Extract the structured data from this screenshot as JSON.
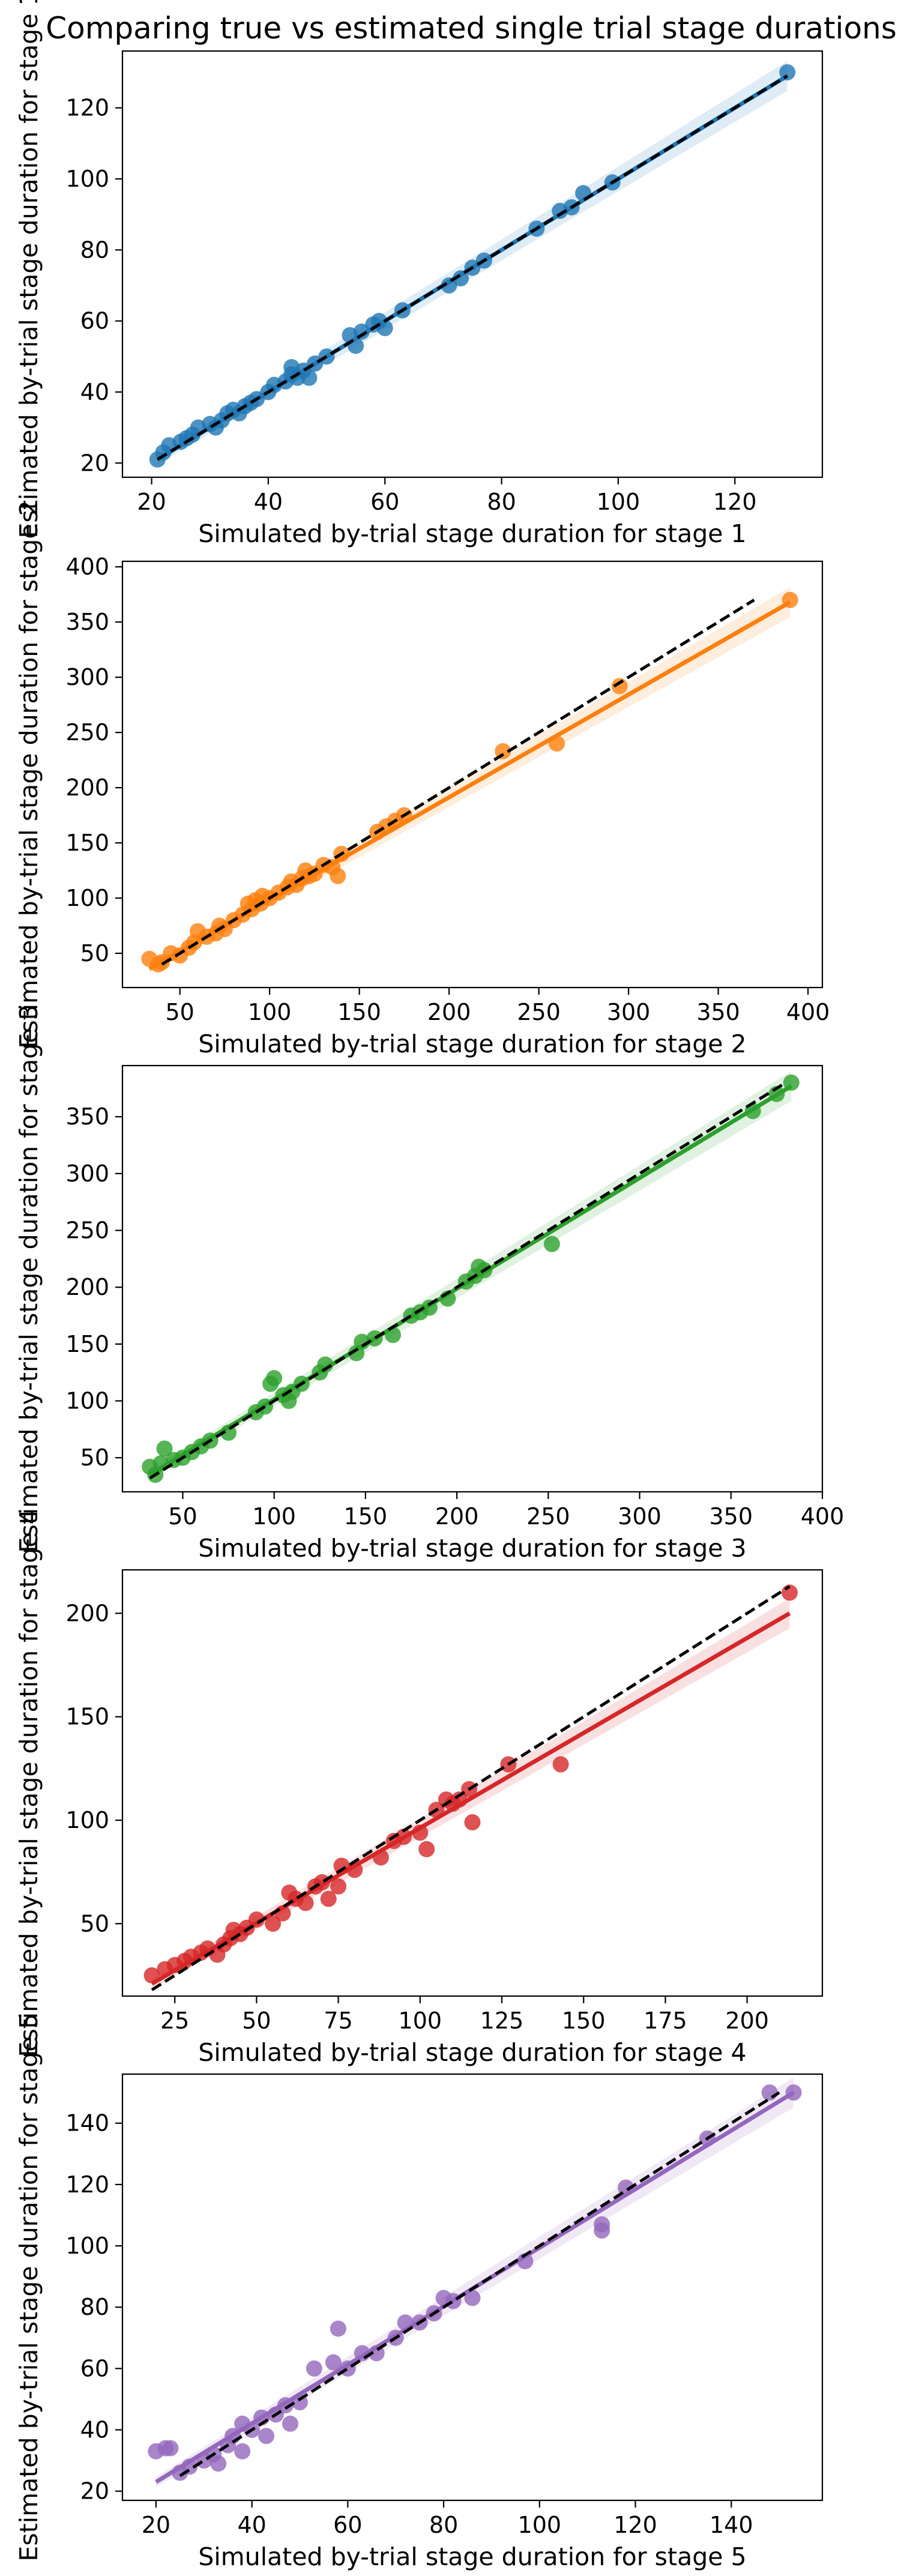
{
  "figure_title": "Comparing true vs estimated single trial stage durations",
  "identity_line": {
    "color": "#000000",
    "style": "dashed"
  },
  "chart_data": [
    {
      "type": "scatter",
      "stage": 1,
      "color": "#1f77b4",
      "xlabel": "Simulated by-trial stage duration for stage 1",
      "ylabel": "Estimated by-trial stage duration for stage 1",
      "xlim": [
        15,
        135
      ],
      "ylim": [
        16,
        136
      ],
      "xticks": [
        20,
        40,
        60,
        80,
        100,
        120
      ],
      "yticks": [
        20,
        40,
        60,
        80,
        100,
        120
      ],
      "identity": [
        21,
        129
      ],
      "fit": {
        "x": [
          21,
          129
        ],
        "y": [
          21,
          129
        ]
      },
      "points": [
        [
          21,
          21
        ],
        [
          22,
          23
        ],
        [
          23,
          25
        ],
        [
          25,
          26
        ],
        [
          26,
          27
        ],
        [
          27,
          28
        ],
        [
          28,
          30
        ],
        [
          30,
          31
        ],
        [
          31,
          30
        ],
        [
          32,
          32
        ],
        [
          33,
          34
        ],
        [
          34,
          35
        ],
        [
          35,
          34
        ],
        [
          36,
          36
        ],
        [
          37,
          37
        ],
        [
          38,
          38
        ],
        [
          40,
          40
        ],
        [
          41,
          42
        ],
        [
          43,
          43
        ],
        [
          44,
          45
        ],
        [
          44,
          47
        ],
        [
          45,
          44
        ],
        [
          46,
          46
        ],
        [
          47,
          44
        ],
        [
          48,
          48
        ],
        [
          50,
          50
        ],
        [
          54,
          56
        ],
        [
          55,
          53
        ],
        [
          56,
          57
        ],
        [
          58,
          59
        ],
        [
          59,
          60
        ],
        [
          60,
          58
        ],
        [
          63,
          63
        ],
        [
          71,
          70
        ],
        [
          73,
          72
        ],
        [
          75,
          75
        ],
        [
          77,
          77
        ],
        [
          86,
          86
        ],
        [
          90,
          91
        ],
        [
          92,
          92
        ],
        [
          94,
          96
        ],
        [
          99,
          99
        ],
        [
          129,
          130
        ]
      ]
    },
    {
      "type": "scatter",
      "stage": 2,
      "color": "#ff7f0e",
      "xlabel": "Simulated by-trial stage duration for stage 2",
      "ylabel": "Estimated by-trial stage duration for stage 2",
      "xlim": [
        18,
        408
      ],
      "ylim": [
        19,
        405
      ],
      "xticks": [
        50,
        100,
        150,
        200,
        250,
        300,
        350,
        400
      ],
      "yticks": [
        50,
        100,
        150,
        200,
        250,
        300,
        350,
        400
      ],
      "identity": [
        40,
        370
      ],
      "fit": {
        "x": [
          33,
          390
        ],
        "y": [
          36,
          368
        ]
      },
      "points": [
        [
          33,
          45
        ],
        [
          38,
          40
        ],
        [
          40,
          42
        ],
        [
          45,
          50
        ],
        [
          50,
          48
        ],
        [
          55,
          55
        ],
        [
          58,
          60
        ],
        [
          60,
          70
        ],
        [
          65,
          65
        ],
        [
          70,
          68
        ],
        [
          72,
          75
        ],
        [
          75,
          72
        ],
        [
          80,
          80
        ],
        [
          85,
          85
        ],
        [
          88,
          95
        ],
        [
          90,
          90
        ],
        [
          92,
          98
        ],
        [
          95,
          95
        ],
        [
          96,
          102
        ],
        [
          100,
          100
        ],
        [
          105,
          105
        ],
        [
          110,
          110
        ],
        [
          112,
          115
        ],
        [
          115,
          112
        ],
        [
          118,
          118
        ],
        [
          120,
          125
        ],
        [
          122,
          120
        ],
        [
          125,
          122
        ],
        [
          130,
          130
        ],
        [
          135,
          128
        ],
        [
          138,
          120
        ],
        [
          140,
          140
        ],
        [
          160,
          160
        ],
        [
          165,
          165
        ],
        [
          170,
          170
        ],
        [
          175,
          175
        ],
        [
          230,
          233
        ],
        [
          260,
          240
        ],
        [
          295,
          292
        ],
        [
          390,
          370
        ]
      ]
    },
    {
      "type": "scatter",
      "stage": 3,
      "color": "#2ca02c",
      "xlabel": "Simulated by-trial stage duration for stage 3",
      "ylabel": "Estimated by-trial stage duration for stage 3",
      "xlim": [
        17,
        400
      ],
      "ylim": [
        20,
        395
      ],
      "xticks": [
        50,
        100,
        150,
        200,
        250,
        300,
        350,
        400
      ],
      "yticks": [
        50,
        100,
        150,
        200,
        250,
        300,
        350
      ],
      "identity": [
        32,
        380
      ],
      "fit": {
        "x": [
          32,
          383
        ],
        "y": [
          35,
          377
        ]
      },
      "points": [
        [
          32,
          42
        ],
        [
          35,
          35
        ],
        [
          38,
          45
        ],
        [
          40,
          58
        ],
        [
          45,
          48
        ],
        [
          50,
          50
        ],
        [
          55,
          55
        ],
        [
          60,
          60
        ],
        [
          65,
          65
        ],
        [
          75,
          72
        ],
        [
          90,
          90
        ],
        [
          95,
          95
        ],
        [
          98,
          115
        ],
        [
          100,
          120
        ],
        [
          105,
          105
        ],
        [
          108,
          100
        ],
        [
          110,
          108
        ],
        [
          115,
          115
        ],
        [
          125,
          125
        ],
        [
          128,
          132
        ],
        [
          145,
          142
        ],
        [
          148,
          152
        ],
        [
          155,
          155
        ],
        [
          165,
          158
        ],
        [
          175,
          175
        ],
        [
          180,
          178
        ],
        [
          185,
          182
        ],
        [
          195,
          190
        ],
        [
          205,
          205
        ],
        [
          210,
          210
        ],
        [
          212,
          218
        ],
        [
          215,
          215
        ],
        [
          252,
          238
        ],
        [
          362,
          355
        ],
        [
          375,
          370
        ],
        [
          383,
          380
        ]
      ]
    },
    {
      "type": "scatter",
      "stage": 4,
      "color": "#d62728",
      "xlabel": "Simulated by-trial stage duration for stage 4",
      "ylabel": "Estimated by-trial stage duration for stage 4",
      "xlim": [
        9,
        223
      ],
      "ylim": [
        15,
        221
      ],
      "xticks": [
        25,
        50,
        75,
        100,
        125,
        150,
        175,
        200
      ],
      "yticks": [
        50,
        100,
        150,
        200
      ],
      "identity": [
        18,
        213
      ],
      "fit": {
        "x": [
          18,
          213
        ],
        "y": [
          21,
          200
        ]
      },
      "points": [
        [
          18,
          25
        ],
        [
          22,
          28
        ],
        [
          25,
          30
        ],
        [
          28,
          32
        ],
        [
          30,
          34
        ],
        [
          33,
          36
        ],
        [
          35,
          38
        ],
        [
          38,
          35
        ],
        [
          40,
          40
        ],
        [
          42,
          43
        ],
        [
          43,
          47
        ],
        [
          45,
          45
        ],
        [
          47,
          48
        ],
        [
          50,
          52
        ],
        [
          55,
          50
        ],
        [
          58,
          55
        ],
        [
          60,
          65
        ],
        [
          62,
          62
        ],
        [
          65,
          60
        ],
        [
          68,
          68
        ],
        [
          70,
          70
        ],
        [
          72,
          62
        ],
        [
          75,
          68
        ],
        [
          76,
          78
        ],
        [
          80,
          76
        ],
        [
          88,
          82
        ],
        [
          92,
          90
        ],
        [
          95,
          92
        ],
        [
          100,
          94
        ],
        [
          102,
          86
        ],
        [
          105,
          105
        ],
        [
          108,
          110
        ],
        [
          110,
          108
        ],
        [
          112,
          110
        ],
        [
          115,
          115
        ],
        [
          116,
          99
        ],
        [
          127,
          127
        ],
        [
          143,
          127
        ],
        [
          213,
          210
        ]
      ]
    },
    {
      "type": "scatter",
      "stage": 5,
      "color": "#9467bd",
      "xlabel": "Simulated by-trial stage duration for stage 5",
      "ylabel": "Estimated by-trial stage duration for stage 5",
      "xlim": [
        13,
        159
      ],
      "ylim": [
        17,
        156
      ],
      "xticks": [
        20,
        40,
        60,
        80,
        100,
        120,
        140
      ],
      "yticks": [
        20,
        40,
        60,
        80,
        100,
        120,
        140
      ],
      "identity": [
        25,
        150
      ],
      "fit": {
        "x": [
          20,
          153
        ],
        "y": [
          23,
          150
        ]
      },
      "points": [
        [
          20,
          33
        ],
        [
          22,
          34
        ],
        [
          23,
          34
        ],
        [
          25,
          26
        ],
        [
          27,
          28
        ],
        [
          30,
          30
        ],
        [
          32,
          32
        ],
        [
          33,
          29
        ],
        [
          35,
          35
        ],
        [
          36,
          38
        ],
        [
          38,
          33
        ],
        [
          38,
          42
        ],
        [
          40,
          40
        ],
        [
          42,
          44
        ],
        [
          43,
          38
        ],
        [
          45,
          45
        ],
        [
          47,
          48
        ],
        [
          48,
          42
        ],
        [
          50,
          49
        ],
        [
          53,
          60
        ],
        [
          57,
          62
        ],
        [
          58,
          73
        ],
        [
          60,
          60
        ],
        [
          63,
          65
        ],
        [
          66,
          65
        ],
        [
          70,
          70
        ],
        [
          72,
          75
        ],
        [
          75,
          75
        ],
        [
          78,
          78
        ],
        [
          80,
          83
        ],
        [
          82,
          82
        ],
        [
          86,
          83
        ],
        [
          97,
          95
        ],
        [
          113,
          105
        ],
        [
          113,
          107
        ],
        [
          118,
          119
        ],
        [
          135,
          135
        ],
        [
          148,
          150
        ],
        [
          153,
          150
        ]
      ]
    }
  ]
}
